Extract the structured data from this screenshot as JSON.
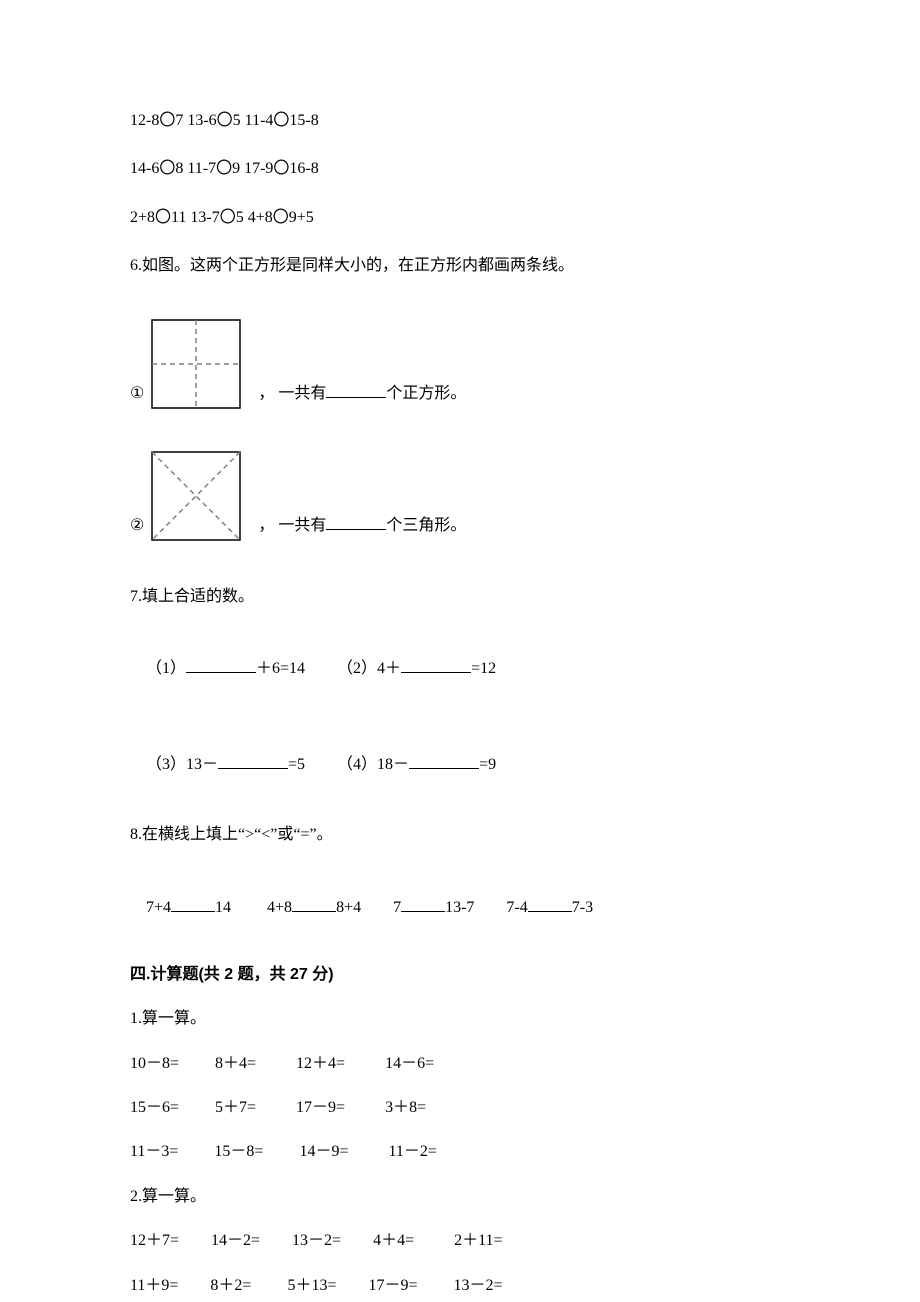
{
  "text_color": "#000000",
  "bg_color": "#ffffff",
  "font_size_pt": 12,
  "heading_font": "SimHei",
  "body_font": "SimSun",
  "lines_top": [
    "12-8〇7 13-6〇5 11-4〇15-8",
    "14-6〇8 11-7〇9 17-9〇16-8",
    "2+8〇11 13-7〇5 4+8〇9+5"
  ],
  "q6": {
    "prompt": "6.如图。这两个正方形是同样大小的，在正方形内都画两条线。",
    "item1": {
      "marker": "①",
      "before": "，  一共有",
      "after": "个正方形。"
    },
    "item2": {
      "marker": "②",
      "before": "，  一共有",
      "after": "个三角形。"
    },
    "svg": {
      "size": 92,
      "stroke": "#000000",
      "dash_stroke": "#808080",
      "stroke_width": 1.5,
      "dash": "5,4"
    }
  },
  "q7": {
    "prompt": "7.填上合适的数。",
    "row1_a": "（1）",
    "row1_b": "＋6=14",
    "row1_c": "（2）4＋",
    "row1_d": "=12",
    "row2_a": "（3）13－",
    "row2_b": "=5",
    "row2_c": "（4）18－",
    "row2_d": "=9"
  },
  "q8": {
    "prompt": "8.在横线上填上“>“<”或“=”。",
    "parts": [
      "7+4",
      "14",
      "4+8",
      "8+4",
      "7",
      "13-7",
      "7-4",
      "7-3"
    ]
  },
  "section4_heading": "四.计算题(共 2 题，共 27 分)",
  "calc1": {
    "title": "1.算一算。",
    "rows": [
      [
        "10－8=",
        "8＋4=",
        "12＋4=",
        "14－6="
      ],
      [
        "15－6=",
        "5＋7=",
        "17－9=",
        "3＋8="
      ],
      [
        "11－3=",
        "15－8=",
        "14－9=",
        "11－2="
      ]
    ],
    "col_pos": [
      0,
      14,
      28,
      43
    ]
  },
  "calc2": {
    "title": "2.算一算。",
    "rows": [
      [
        "12＋7=",
        "14－2=",
        "13－2=",
        "4＋4=",
        "2＋11="
      ],
      [
        "11＋9=",
        "8＋2=",
        "5＋13=",
        "17－9=",
        "13－2="
      ]
    ],
    "col_pos": [
      0,
      13,
      26,
      39,
      53
    ]
  },
  "blank_widths": {
    "q6": 60,
    "q7": 70,
    "q8": 44
  }
}
